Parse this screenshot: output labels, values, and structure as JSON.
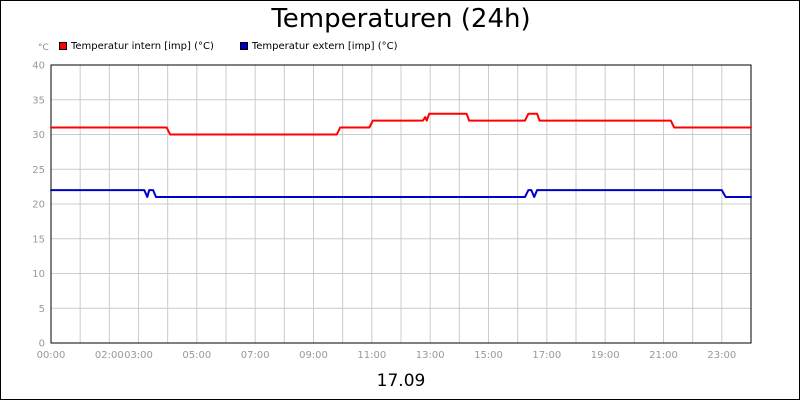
{
  "chart_data": {
    "type": "line",
    "title": "Temperaturen (24h)",
    "y_unit": "°C",
    "xlabel": "17.09",
    "ylim": [
      0,
      40
    ],
    "y_ticks": [
      "0",
      "5",
      "10",
      "15",
      "20",
      "25",
      "30",
      "35",
      "40"
    ],
    "x_ticks": [
      "00:00",
      "02:00",
      "03:00",
      "05:00",
      "07:00",
      "09:00",
      "11:00",
      "13:00",
      "15:00",
      "17:00",
      "19:00",
      "21:00",
      "23:00"
    ],
    "grid": true,
    "legend_position": "top-left",
    "series": [
      {
        "name": "Temperatur intern [imp] (°C)",
        "color": "#ff0000",
        "points": [
          [
            "00:00",
            31
          ],
          [
            "03:58",
            31
          ],
          [
            "04:05",
            30
          ],
          [
            "09:48",
            30
          ],
          [
            "09:55",
            31
          ],
          [
            "10:55",
            31
          ],
          [
            "11:02",
            32
          ],
          [
            "12:45",
            32
          ],
          [
            "12:50",
            32.5
          ],
          [
            "12:53",
            32
          ],
          [
            "12:58",
            33
          ],
          [
            "14:15",
            33
          ],
          [
            "14:20",
            32
          ],
          [
            "16:15",
            32
          ],
          [
            "16:22",
            33
          ],
          [
            "16:40",
            33
          ],
          [
            "16:45",
            32
          ],
          [
            "21:15",
            32
          ],
          [
            "21:22",
            31
          ],
          [
            "24:00",
            31
          ]
        ]
      },
      {
        "name": "Temperatur extern [imp] (°C)",
        "color": "#0000cc",
        "points": [
          [
            "00:00",
            22
          ],
          [
            "03:12",
            22
          ],
          [
            "03:18",
            21
          ],
          [
            "03:22",
            22
          ],
          [
            "03:30",
            22
          ],
          [
            "03:36",
            21
          ],
          [
            "16:15",
            21
          ],
          [
            "16:22",
            22
          ],
          [
            "16:28",
            22
          ],
          [
            "16:34",
            21
          ],
          [
            "16:40",
            22
          ],
          [
            "23:00",
            22
          ],
          [
            "23:08",
            21
          ],
          [
            "24:00",
            21
          ]
        ]
      }
    ]
  }
}
